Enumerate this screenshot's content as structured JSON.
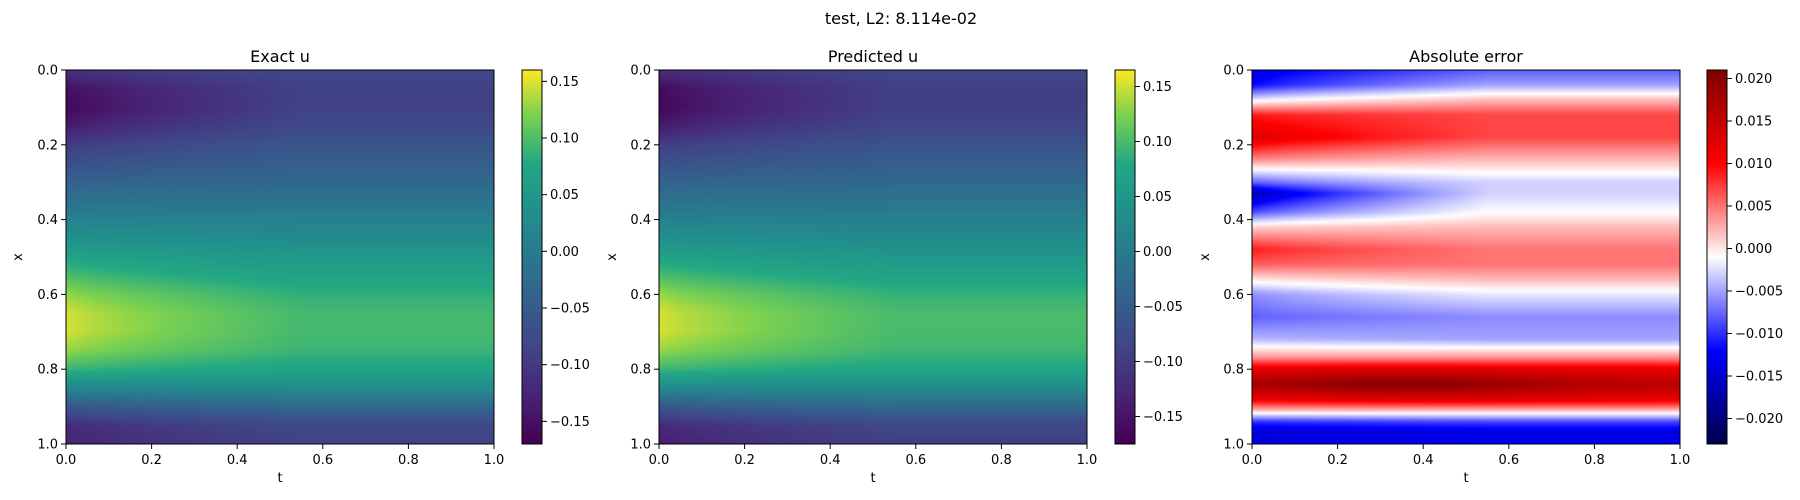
{
  "figure": {
    "title": "test, L2: 8.114e-02"
  },
  "chart_data": [
    {
      "type": "heatmap",
      "title": "Exact u",
      "xlabel": "t",
      "ylabel": "x",
      "xlim": [
        0.0,
        1.0
      ],
      "ylim": [
        1.0,
        0.0
      ],
      "xticks": [
        "0.0",
        "0.2",
        "0.4",
        "0.6",
        "0.8",
        "1.0"
      ],
      "yticks": [
        "0.0",
        "0.2",
        "0.4",
        "0.6",
        "0.8",
        "1.0"
      ],
      "colormap": "viridis",
      "colorbar": {
        "range": [
          -0.17,
          0.16
        ],
        "ticks": [
          0.15,
          0.1,
          0.05,
          0.0,
          -0.05,
          -0.1,
          -0.15
        ],
        "tick_labels": [
          "0.15",
          "0.10",
          "0.05",
          "0.00",
          "−0.05",
          "−0.10",
          "−0.15"
        ]
      },
      "profile_x": [
        0.0,
        0.05,
        0.1,
        0.15,
        0.2,
        0.3,
        0.4,
        0.5,
        0.6,
        0.65,
        0.7,
        0.75,
        0.8,
        0.85,
        0.9,
        0.95,
        1.0
      ],
      "profile_values_t0": [
        -0.11,
        -0.155,
        -0.165,
        -0.14,
        -0.1,
        -0.04,
        0.01,
        0.07,
        0.13,
        0.15,
        0.15,
        0.13,
        0.09,
        0.02,
        -0.06,
        -0.12,
        -0.13
      ],
      "profile_values_t1": [
        -0.08,
        -0.09,
        -0.09,
        -0.08,
        -0.06,
        -0.03,
        0.01,
        0.05,
        0.085,
        0.095,
        0.095,
        0.09,
        0.07,
        0.03,
        -0.03,
        -0.08,
        -0.09
      ]
    },
    {
      "type": "heatmap",
      "title": "Predicted u",
      "xlabel": "t",
      "ylabel": "x",
      "xlim": [
        0.0,
        1.0
      ],
      "ylim": [
        1.0,
        0.0
      ],
      "xticks": [
        "0.0",
        "0.2",
        "0.4",
        "0.6",
        "0.8",
        "1.0"
      ],
      "yticks": [
        "0.0",
        "0.2",
        "0.4",
        "0.6",
        "0.8",
        "1.0"
      ],
      "colormap": "viridis",
      "colorbar": {
        "range": [
          -0.175,
          0.165
        ],
        "ticks": [
          0.15,
          0.1,
          0.05,
          0.0,
          -0.05,
          -0.1,
          -0.15
        ],
        "tick_labels": [
          "0.15",
          "0.10",
          "0.05",
          "0.00",
          "−0.05",
          "−0.10",
          "−0.15"
        ]
      },
      "profile_x": [
        0.0,
        0.05,
        0.1,
        0.15,
        0.2,
        0.3,
        0.4,
        0.5,
        0.6,
        0.65,
        0.7,
        0.75,
        0.8,
        0.85,
        0.9,
        0.95,
        1.0
      ],
      "profile_values_t0": [
        -0.12,
        -0.165,
        -0.17,
        -0.145,
        -0.1,
        -0.04,
        0.01,
        0.07,
        0.135,
        0.155,
        0.155,
        0.135,
        0.095,
        0.025,
        -0.06,
        -0.125,
        -0.14
      ],
      "profile_values_t1": [
        -0.085,
        -0.095,
        -0.095,
        -0.085,
        -0.065,
        -0.03,
        0.01,
        0.05,
        0.09,
        0.1,
        0.1,
        0.095,
        0.075,
        0.03,
        -0.03,
        -0.085,
        -0.095
      ]
    },
    {
      "type": "heatmap",
      "title": "Absolute error",
      "xlabel": "t",
      "ylabel": "x",
      "xlim": [
        0.0,
        1.0
      ],
      "ylim": [
        1.0,
        0.0
      ],
      "xticks": [
        "0.0",
        "0.2",
        "0.4",
        "0.6",
        "0.8",
        "1.0"
      ],
      "yticks": [
        "0.0",
        "0.2",
        "0.4",
        "0.6",
        "0.8",
        "1.0"
      ],
      "colormap": "seismic",
      "colorbar": {
        "range": [
          -0.023,
          0.021
        ],
        "ticks": [
          0.02,
          0.015,
          0.01,
          0.005,
          0.0,
          -0.005,
          -0.01,
          -0.015,
          -0.02
        ],
        "tick_labels": [
          "0.020",
          "0.015",
          "0.010",
          "0.005",
          "0.000",
          "−0.005",
          "−0.010",
          "−0.015",
          "−0.020"
        ]
      },
      "profile_x": [
        0.0,
        0.04,
        0.08,
        0.12,
        0.18,
        0.24,
        0.3,
        0.33,
        0.38,
        0.42,
        0.48,
        0.52,
        0.56,
        0.6,
        0.66,
        0.72,
        0.77,
        0.8,
        0.84,
        0.88,
        0.91,
        0.94,
        0.97,
        1.0
      ],
      "profile_values_t0": [
        -0.014,
        -0.012,
        -0.002,
        0.009,
        0.013,
        0.004,
        -0.008,
        -0.017,
        -0.009,
        0.001,
        0.009,
        0.006,
        0.0,
        -0.006,
        -0.008,
        -0.004,
        0.004,
        0.012,
        0.016,
        0.011,
        0.002,
        -0.01,
        -0.015,
        -0.013
      ],
      "profile_values_t1": [
        -0.008,
        -0.005,
        0.002,
        0.007,
        0.007,
        0.002,
        -0.003,
        -0.003,
        -0.001,
        0.002,
        0.005,
        0.005,
        0.002,
        -0.002,
        -0.006,
        -0.005,
        0.004,
        0.012,
        0.016,
        0.012,
        0.002,
        -0.009,
        -0.014,
        -0.012
      ],
      "peak": {
        "t": 0.35,
        "x": 0.84,
        "value": 0.02
      }
    }
  ]
}
